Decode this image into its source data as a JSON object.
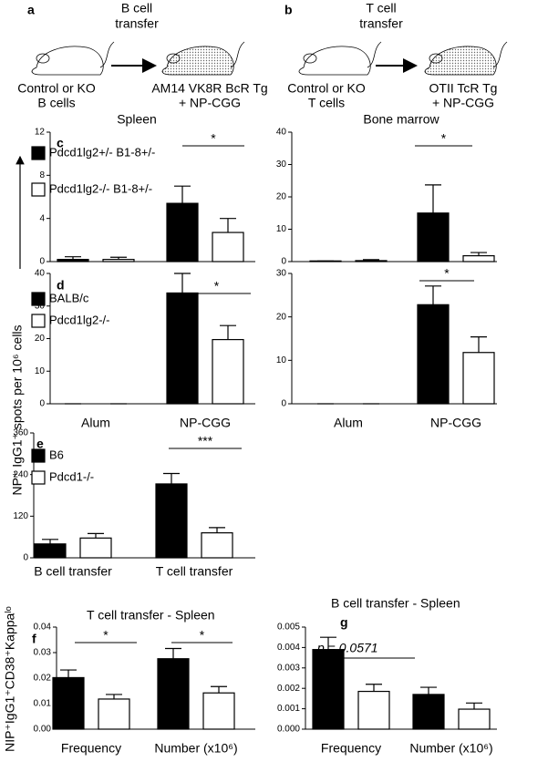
{
  "schematics": {
    "a": {
      "letter": "a",
      "transfer": [
        "B cell",
        "transfer"
      ],
      "source": [
        "Control or KO",
        "B  cells"
      ],
      "recipient": [
        "AM14 VK8R BcR Tg",
        "+ NP-CGG"
      ]
    },
    "b": {
      "letter": "b",
      "transfer": [
        "T cell",
        "transfer"
      ],
      "source": [
        "Control or KO",
        "T cells"
      ],
      "recipient": [
        "OTII TcR Tg",
        "+ NP-CGG"
      ]
    }
  },
  "columns": [
    "Spleen",
    "Bone marrow"
  ],
  "shared_ylabel": "NP⁺ IgG1⁺ spots per 10⁶ cells",
  "chart_data": [
    {
      "type": "bar",
      "panel": "c",
      "ylim": [
        0,
        12
      ],
      "yticks": [
        0,
        4,
        8,
        12
      ],
      "annotations": [
        "*"
      ],
      "series": [
        {
          "name": "Pdcd1lg2+/- B1-8+/-",
          "color": "#000000",
          "values": [
            0.2,
            5.4
          ],
          "errors": [
            0.25,
            1.6
          ]
        },
        {
          "name": "Pdcd1lg2-/- B1-8+/-",
          "color": "#ffffff",
          "values": [
            0.2,
            2.7
          ],
          "errors": [
            0.2,
            1.3
          ]
        }
      ]
    },
    {
      "type": "bar",
      "ylim": [
        0,
        40
      ],
      "yticks": [
        0,
        10,
        20,
        30,
        40
      ],
      "annotations": [
        "*"
      ],
      "series": [
        {
          "color": "#000000",
          "values": [
            0.2,
            15
          ],
          "errors": [
            0,
            8.7
          ]
        },
        {
          "color": "#ffffff",
          "values": [
            0.3,
            1.8
          ],
          "errors": [
            0.3,
            1
          ]
        }
      ]
    },
    {
      "type": "bar",
      "panel": "d",
      "categories": [
        "Alum",
        "NP-CGG"
      ],
      "ylim": [
        0,
        40
      ],
      "yticks": [
        0,
        10,
        20,
        30,
        40
      ],
      "annotations": [
        "*"
      ],
      "series": [
        {
          "name": "BALB/c",
          "color": "#000000",
          "values": [
            0,
            34
          ],
          "errors": [
            0,
            6
          ]
        },
        {
          "name": "Pdcd1lg2-/-",
          "color": "#ffffff",
          "values": [
            0,
            19.7
          ],
          "errors": [
            0,
            4.3
          ]
        }
      ]
    },
    {
      "type": "bar",
      "categories": [
        "Alum",
        "NP-CGG"
      ],
      "ylim": [
        0,
        30
      ],
      "yticks": [
        0,
        10,
        20,
        30
      ],
      "annotations": [
        "*"
      ],
      "series": [
        {
          "color": "#000000",
          "values": [
            0,
            22.8
          ],
          "errors": [
            0,
            4.3
          ]
        },
        {
          "color": "#ffffff",
          "values": [
            0,
            11.8
          ],
          "errors": [
            0,
            3.6
          ]
        }
      ]
    },
    {
      "type": "bar",
      "panel": "e",
      "categories": [
        "B cell transfer",
        "T cell transfer"
      ],
      "ylim": [
        0,
        360
      ],
      "yticks": [
        0,
        120,
        240,
        360
      ],
      "annotations": [
        "***"
      ],
      "series": [
        {
          "name": "B6",
          "color": "#000000",
          "values": [
            40,
            213
          ],
          "errors": [
            13,
            30
          ]
        },
        {
          "name": "Pdcd1-/-",
          "color": "#ffffff",
          "values": [
            57,
            72
          ],
          "errors": [
            13,
            15
          ]
        }
      ]
    },
    {
      "type": "bar",
      "panel": "f",
      "title": "T cell transfer - Spleen",
      "ylabel": "NIP⁺IgG1⁺CD38⁺Kappaˡᵒ",
      "categories": [
        "Frequency",
        "Number (x10⁶)"
      ],
      "ylim": [
        0,
        0.04
      ],
      "yticks": [
        {
          "value": 0,
          "label": "0.00"
        },
        {
          "value": 0.01,
          "label": "0.01"
        },
        {
          "value": 0.02,
          "label": "0.02"
        },
        {
          "value": 0.03,
          "label": "0.03"
        },
        {
          "value": 0.04,
          "label": "0.04"
        }
      ],
      "annotations": [
        "*",
        "*"
      ],
      "series": [
        {
          "color": "#000000",
          "values": [
            0.0202,
            0.0276
          ],
          "errors": [
            0.003,
            0.004
          ]
        },
        {
          "color": "#ffffff",
          "values": [
            0.0118,
            0.0142
          ],
          "errors": [
            0.0018,
            0.0025
          ]
        }
      ]
    },
    {
      "type": "bar",
      "panel": "g",
      "title": "B cell transfer - Spleen",
      "categories": [
        "Frequency",
        "Number (x10⁶)"
      ],
      "ylim": [
        0,
        0.005
      ],
      "yticks": [
        {
          "value": 0,
          "label": "0.000"
        },
        {
          "value": 0.001,
          "label": "0.001"
        },
        {
          "value": 0.002,
          "label": "0.002"
        },
        {
          "value": 0.003,
          "label": "0.003"
        },
        {
          "value": 0.004,
          "label": "0.004"
        },
        {
          "value": 0.005,
          "label": "0.005"
        }
      ],
      "annotations": [
        "p = 0.0571"
      ],
      "series": [
        {
          "color": "#000000",
          "values": [
            0.0039,
            0.0017
          ],
          "errors": [
            0.0006,
            0.00035
          ]
        },
        {
          "color": "#ffffff",
          "values": [
            0.00185,
            0.00098
          ],
          "errors": [
            0.00035,
            0.0003
          ]
        }
      ]
    }
  ]
}
